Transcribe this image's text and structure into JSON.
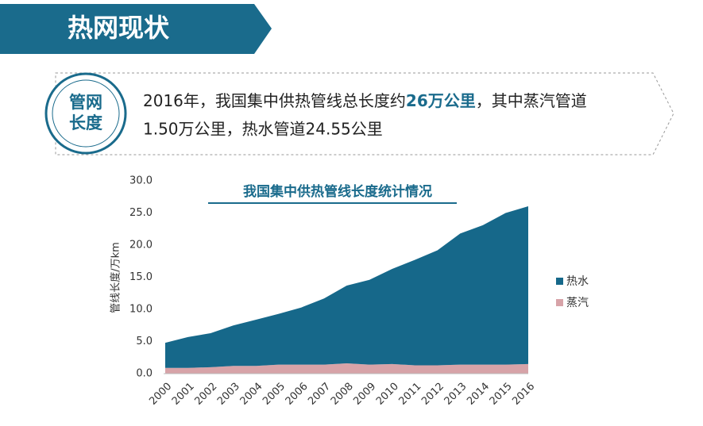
{
  "header": {
    "title": "热网现状"
  },
  "badge": {
    "label": "管网长度"
  },
  "summary": {
    "segments": [
      "2016年，我国集中供热管线总长度约",
      "26万公里",
      "，其中蒸汽管道",
      "1.50万公里，热水管道24.55公里"
    ]
  },
  "chart_data": {
    "type": "stacked-area",
    "title": "我国集中供热管线长度统计情况",
    "y_label": "管线长度/万km",
    "categories": [
      "2000",
      "2001",
      "2002",
      "2003",
      "2004",
      "2005",
      "2006",
      "2007",
      "2008",
      "2009",
      "2010",
      "2011",
      "2012",
      "2013",
      "2014",
      "2015",
      "2016"
    ],
    "series": [
      {
        "name": "热水",
        "color": "#16688a",
        "values": [
          3.9,
          4.8,
          5.3,
          6.3,
          7.2,
          7.9,
          8.9,
          10.3,
          12.1,
          13.2,
          14.8,
          16.4,
          17.9,
          20.4,
          21.7,
          23.6,
          24.55
        ]
      },
      {
        "name": "蒸汽",
        "color": "#d7a3a8",
        "values": [
          0.9,
          0.9,
          1.0,
          1.2,
          1.2,
          1.4,
          1.4,
          1.4,
          1.6,
          1.4,
          1.5,
          1.3,
          1.3,
          1.4,
          1.4,
          1.4,
          1.5
        ]
      }
    ],
    "ylim": [
      0,
      30
    ],
    "yticks": [
      {
        "value": 0,
        "label": "0.0"
      },
      {
        "value": 5,
        "label": "5.0"
      },
      {
        "value": 10,
        "label": "10.0"
      },
      {
        "value": 15,
        "label": "15.0"
      },
      {
        "value": 20,
        "label": "20.0"
      },
      {
        "value": 25,
        "label": "25.0"
      },
      {
        "value": 30,
        "label": "30.0"
      }
    ],
    "legend": "right"
  }
}
